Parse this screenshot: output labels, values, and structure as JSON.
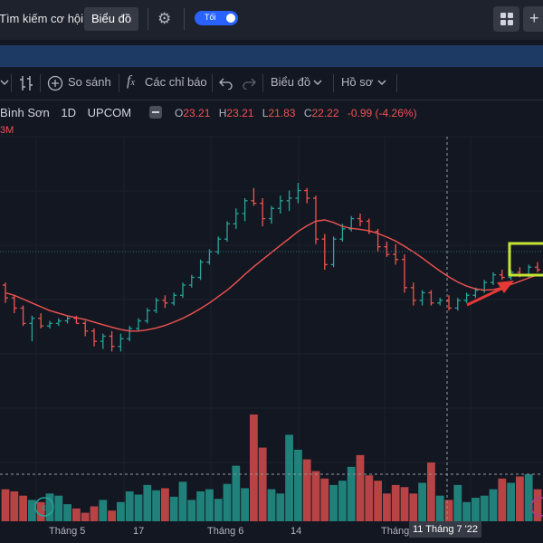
{
  "topbar": {
    "search_label": "Tìm kiếm cơ hội",
    "chart_tab": "Biểu đồ",
    "theme_toggle": "Tối",
    "icons": [
      "gear-icon",
      "layout-grid-icon",
      "plus-icon"
    ]
  },
  "toolbar": {
    "compare": "So sánh",
    "indicators": "Các chỉ báo",
    "chart_menu": "Biểu đồ",
    "profile_menu": "Hồ sơ"
  },
  "legend": {
    "symbol": "Bình Sơn",
    "interval": "1D",
    "exchange": "UPCOM",
    "open_label": "O",
    "open": "23.21",
    "high_label": "H",
    "high": "23.21",
    "low_label": "L",
    "low": "21.83",
    "close_label": "C",
    "close": "22.22",
    "change": "-0.99 (-4.26%)",
    "volume_fragment": "3M"
  },
  "x_axis": {
    "labels": [
      "Tháng 5",
      "17",
      "Tháng 6",
      "14",
      "Tháng"
    ],
    "crosshair_label": "11 Tháng 7 '22"
  },
  "colors": {
    "up": "#26a69a",
    "down": "#ef5350",
    "ma": "#f05350",
    "highlight_box": "#c6e534",
    "arrow": "#e53935",
    "background": "#131722"
  },
  "chart_data": {
    "type": "bar",
    "note_series": [
      "price OHLC bars",
      "moving average",
      "volume"
    ],
    "price": [
      {
        "o": 21.4,
        "h": 21.5,
        "l": 20.7,
        "c": 20.9
      },
      {
        "o": 20.9,
        "h": 21.0,
        "l": 20.3,
        "c": 20.5
      },
      {
        "o": 20.5,
        "h": 20.6,
        "l": 19.8,
        "c": 19.9
      },
      {
        "o": 19.9,
        "h": 20.2,
        "l": 19.2,
        "c": 20.1
      },
      {
        "o": 20.1,
        "h": 20.3,
        "l": 19.7,
        "c": 19.8
      },
      {
        "o": 19.8,
        "h": 20.0,
        "l": 19.7,
        "c": 19.9
      },
      {
        "o": 19.9,
        "h": 20.1,
        "l": 19.8,
        "c": 20.0
      },
      {
        "o": 20.0,
        "h": 20.2,
        "l": 19.9,
        "c": 20.1
      },
      {
        "o": 20.1,
        "h": 20.2,
        "l": 19.9,
        "c": 19.9
      },
      {
        "o": 19.9,
        "h": 20.0,
        "l": 19.4,
        "c": 19.6
      },
      {
        "o": 19.6,
        "h": 19.7,
        "l": 19.0,
        "c": 19.2
      },
      {
        "o": 19.2,
        "h": 19.5,
        "l": 18.9,
        "c": 19.4
      },
      {
        "o": 19.4,
        "h": 19.6,
        "l": 18.8,
        "c": 19.0
      },
      {
        "o": 19.0,
        "h": 19.5,
        "l": 18.8,
        "c": 19.3
      },
      {
        "o": 19.3,
        "h": 19.8,
        "l": 19.2,
        "c": 19.7
      },
      {
        "o": 19.7,
        "h": 20.1,
        "l": 19.6,
        "c": 20.0
      },
      {
        "o": 20.0,
        "h": 20.5,
        "l": 19.9,
        "c": 20.4
      },
      {
        "o": 20.4,
        "h": 20.9,
        "l": 20.3,
        "c": 20.8
      },
      {
        "o": 20.8,
        "h": 21.0,
        "l": 20.5,
        "c": 20.7
      },
      {
        "o": 20.7,
        "h": 21.1,
        "l": 20.6,
        "c": 21.0
      },
      {
        "o": 21.0,
        "h": 21.5,
        "l": 20.9,
        "c": 21.4
      },
      {
        "o": 21.4,
        "h": 21.8,
        "l": 21.3,
        "c": 21.7
      },
      {
        "o": 21.7,
        "h": 22.4,
        "l": 21.6,
        "c": 22.3
      },
      {
        "o": 22.3,
        "h": 22.8,
        "l": 22.2,
        "c": 22.7
      },
      {
        "o": 22.7,
        "h": 23.3,
        "l": 22.6,
        "c": 23.2
      },
      {
        "o": 23.2,
        "h": 23.9,
        "l": 23.1,
        "c": 23.8
      },
      {
        "o": 23.8,
        "h": 24.4,
        "l": 23.6,
        "c": 24.2
      },
      {
        "o": 24.2,
        "h": 24.8,
        "l": 23.9,
        "c": 24.7
      },
      {
        "o": 24.7,
        "h": 25.2,
        "l": 24.5,
        "c": 24.6
      },
      {
        "o": 24.6,
        "h": 24.8,
        "l": 23.7,
        "c": 24.0
      },
      {
        "o": 24.0,
        "h": 24.5,
        "l": 23.8,
        "c": 24.4
      },
      {
        "o": 24.4,
        "h": 24.9,
        "l": 24.2,
        "c": 24.7
      },
      {
        "o": 24.7,
        "h": 25.1,
        "l": 24.3,
        "c": 24.8
      },
      {
        "o": 24.8,
        "h": 25.4,
        "l": 24.6,
        "c": 25.1
      },
      {
        "o": 25.1,
        "h": 25.2,
        "l": 24.6,
        "c": 24.8
      },
      {
        "o": 24.8,
        "h": 24.9,
        "l": 23.0,
        "c": 23.2
      },
      {
        "o": 23.2,
        "h": 23.4,
        "l": 22.0,
        "c": 22.2
      },
      {
        "o": 22.2,
        "h": 23.3,
        "l": 22.1,
        "c": 23.2
      },
      {
        "o": 23.2,
        "h": 23.8,
        "l": 23.1,
        "c": 23.6
      },
      {
        "o": 23.6,
        "h": 24.1,
        "l": 23.5,
        "c": 24.0
      },
      {
        "o": 24.0,
        "h": 24.2,
        "l": 23.7,
        "c": 23.9
      },
      {
        "o": 23.9,
        "h": 24.0,
        "l": 23.4,
        "c": 23.5
      },
      {
        "o": 23.5,
        "h": 23.6,
        "l": 22.7,
        "c": 22.9
      },
      {
        "o": 22.9,
        "h": 23.1,
        "l": 22.5,
        "c": 22.6
      },
      {
        "o": 22.6,
        "h": 23.0,
        "l": 22.2,
        "c": 22.4
      },
      {
        "o": 22.4,
        "h": 22.6,
        "l": 21.1,
        "c": 21.3
      },
      {
        "o": 21.3,
        "h": 21.5,
        "l": 20.6,
        "c": 20.8
      },
      {
        "o": 20.8,
        "h": 21.2,
        "l": 20.6,
        "c": 21.1
      },
      {
        "o": 21.1,
        "h": 21.2,
        "l": 20.6,
        "c": 20.7
      },
      {
        "o": 20.7,
        "h": 20.9,
        "l": 20.6,
        "c": 20.8
      },
      {
        "o": 20.8,
        "h": 21.0,
        "l": 20.4,
        "c": 20.5
      },
      {
        "o": 20.5,
        "h": 20.9,
        "l": 20.4,
        "c": 20.8
      },
      {
        "o": 20.8,
        "h": 21.1,
        "l": 20.7,
        "c": 21.0
      },
      {
        "o": 21.0,
        "h": 21.3,
        "l": 20.9,
        "c": 21.2
      },
      {
        "o": 21.2,
        "h": 21.6,
        "l": 21.1,
        "c": 21.5
      },
      {
        "o": 21.5,
        "h": 21.9,
        "l": 21.4,
        "c": 21.8
      },
      {
        "o": 21.8,
        "h": 22.0,
        "l": 21.6,
        "c": 21.7
      },
      {
        "o": 21.7,
        "h": 22.0,
        "l": 21.6,
        "c": 21.9
      },
      {
        "o": 21.9,
        "h": 22.1,
        "l": 21.7,
        "c": 21.8
      },
      {
        "o": 21.8,
        "h": 22.2,
        "l": 21.7,
        "c": 22.1
      },
      {
        "o": 22.1,
        "h": 22.3,
        "l": 21.9,
        "c": 22.0
      }
    ],
    "ma": [
      21.1,
      21.0,
      20.85,
      20.7,
      20.55,
      20.4,
      20.3,
      20.2,
      20.12,
      20.05,
      19.95,
      19.85,
      19.75,
      19.66,
      19.6,
      19.6,
      19.65,
      19.72,
      19.82,
      19.95,
      20.1,
      20.28,
      20.48,
      20.7,
      20.95,
      21.2,
      21.5,
      21.82,
      22.12,
      22.4,
      22.68,
      22.95,
      23.22,
      23.5,
      23.72,
      23.9,
      23.95,
      23.85,
      23.7,
      23.62,
      23.58,
      23.52,
      23.42,
      23.28,
      23.12,
      22.92,
      22.7,
      22.46,
      22.2,
      21.95,
      21.72,
      21.52,
      21.36,
      21.25,
      21.2,
      21.22,
      21.3,
      21.42,
      21.55,
      21.68,
      21.8
    ],
    "volume": [
      0.3,
      0.28,
      0.24,
      0.2,
      0.18,
      0.26,
      0.24,
      0.16,
      0.12,
      0.08,
      0.14,
      0.2,
      0.1,
      0.18,
      0.28,
      0.25,
      0.34,
      0.29,
      0.31,
      0.23,
      0.37,
      0.2,
      0.28,
      0.3,
      0.21,
      0.35,
      0.52,
      0.31,
      1.0,
      0.69,
      0.3,
      0.26,
      0.81,
      0.67,
      0.58,
      0.47,
      0.4,
      0.34,
      0.38,
      0.51,
      0.62,
      0.43,
      0.38,
      0.26,
      0.34,
      0.32,
      0.26,
      0.36,
      0.55,
      0.24,
      0.2,
      0.34,
      0.18,
      0.22,
      0.24,
      0.3,
      0.4,
      0.36,
      0.42,
      0.44,
      0.3
    ],
    "y_range_price": [
      18.0,
      26.5
    ],
    "highlight_bars": [
      57,
      60
    ],
    "x_labels": [
      "Tháng 5",
      "17",
      "Tháng 6",
      "14",
      "Tháng"
    ]
  }
}
